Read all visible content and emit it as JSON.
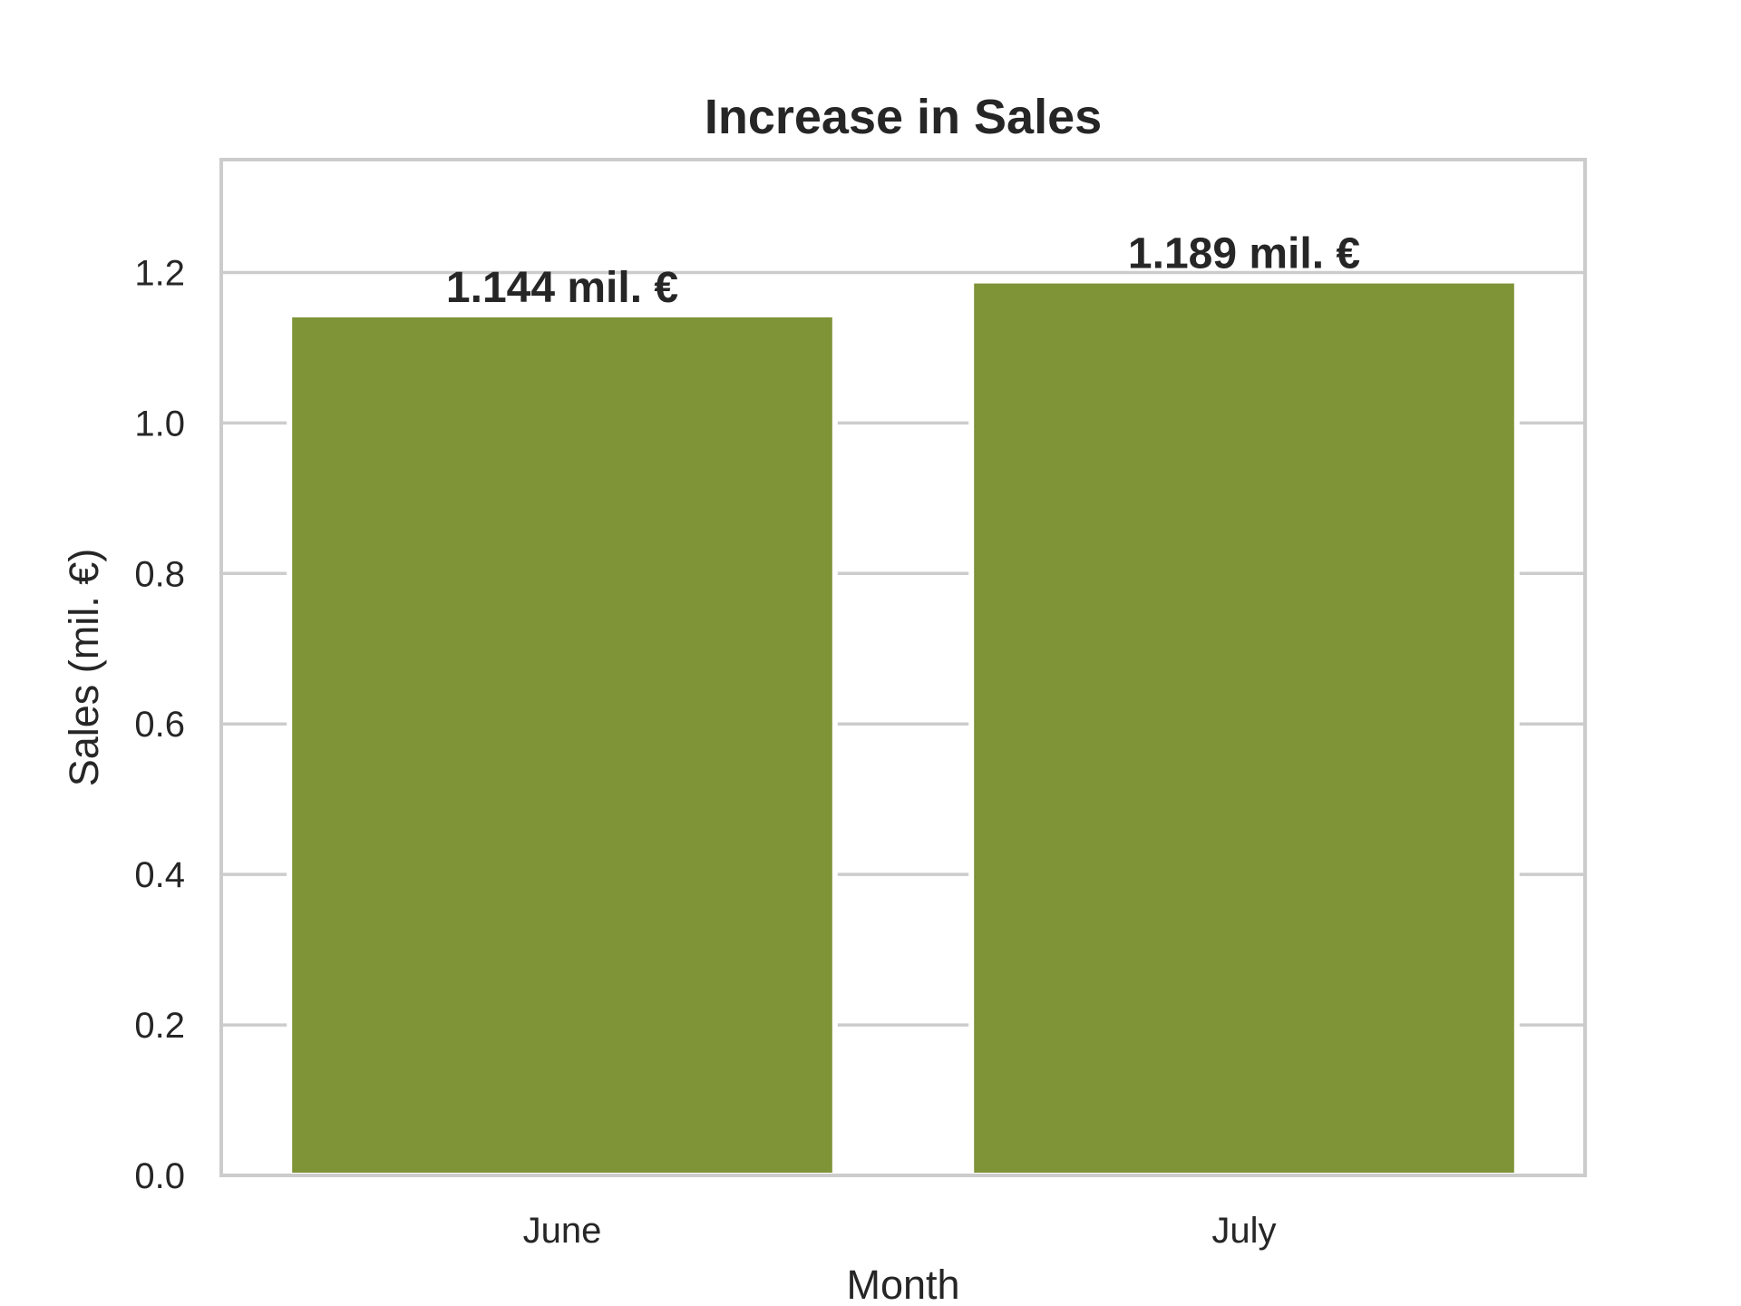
{
  "chart_data": {
    "type": "bar",
    "title": "Increase in Sales",
    "xlabel": "Month",
    "ylabel": "Sales (mil. €)",
    "categories": [
      "June",
      "July"
    ],
    "values": [
      1.144,
      1.189
    ],
    "data_labels": [
      "1.144 mil. €",
      "1.189 mil. €"
    ],
    "ylim": [
      0,
      1.35
    ],
    "yticks": [
      0.0,
      0.2,
      0.4,
      0.6,
      0.8,
      1.0,
      1.2
    ],
    "ytick_labels": [
      "0.0",
      "0.2",
      "0.4",
      "0.6",
      "0.8",
      "1.0",
      "1.2"
    ],
    "grid": "horizontal",
    "colors": {
      "bar": "#7f9337",
      "grid": "#cccccc",
      "spine": "#cccccc",
      "text": "#262626"
    }
  }
}
